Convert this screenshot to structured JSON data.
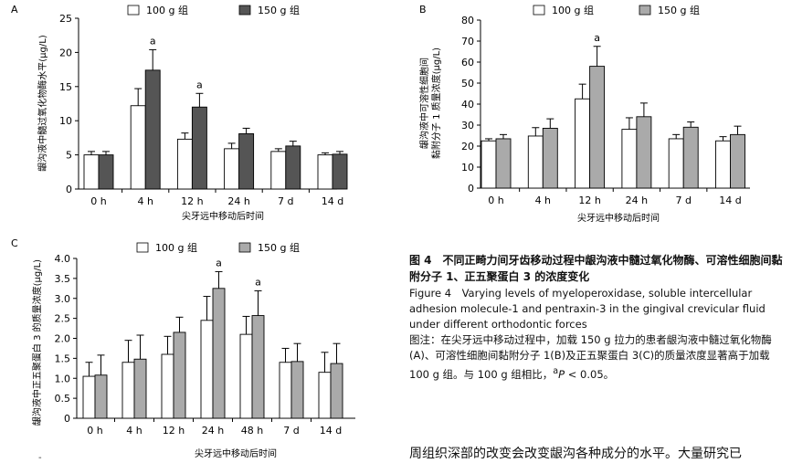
{
  "chart_data": [
    {
      "panel": "A",
      "type": "bar",
      "categories": [
        "0 h",
        "4 h",
        "12 h",
        "24 h",
        "7 d",
        "14 d"
      ],
      "series": [
        {
          "name": "100 g 组",
          "values": [
            5.0,
            12.2,
            7.3,
            5.9,
            5.5,
            5.0
          ],
          "errors": [
            0.5,
            2.5,
            0.9,
            0.8,
            0.4,
            0.3
          ],
          "color": "#ffffff"
        },
        {
          "name": "150 g 组",
          "values": [
            5.0,
            17.4,
            12.0,
            8.1,
            6.3,
            5.1
          ],
          "errors": [
            0.5,
            3.0,
            2.0,
            0.8,
            0.7,
            0.4
          ],
          "color": "#555555"
        }
      ],
      "annotations": [
        {
          "category": "4 h",
          "series": "150 g 组",
          "text": "a"
        },
        {
          "category": "12 h",
          "series": "150 g 组",
          "text": "a"
        }
      ],
      "xlabel": "尖牙远中移动后时间",
      "ylabel": "龈沟液中髓过氧化物酶水平(μg/L)",
      "ylim": [
        0,
        25
      ],
      "yticks": [
        0,
        5,
        10,
        15,
        20,
        25
      ],
      "legend": "top"
    },
    {
      "panel": "B",
      "type": "bar",
      "categories": [
        "0 h",
        "4 h",
        "12 h",
        "24 h",
        "7 d",
        "14 d"
      ],
      "series": [
        {
          "name": "100 g 组",
          "values": [
            22.5,
            24.8,
            42.5,
            28.0,
            23.5,
            22.5
          ],
          "errors": [
            1.0,
            4.0,
            7.0,
            5.5,
            2.0,
            2.0
          ],
          "color": "#ffffff"
        },
        {
          "name": "150 g 组",
          "values": [
            23.5,
            28.5,
            58.0,
            34.0,
            29.0,
            25.5
          ],
          "errors": [
            2.0,
            4.5,
            9.5,
            6.5,
            2.5,
            4.0
          ],
          "color": "#aaaaaa"
        }
      ],
      "annotations": [
        {
          "category": "12 h",
          "series": "150 g 组",
          "text": "a"
        }
      ],
      "xlabel": "尖牙远中移动后时间",
      "ylabel": [
        "龈沟液中可溶性细胞间",
        "黏附分子 1 质量浓度(μg/L)"
      ],
      "ylim": [
        0,
        80
      ],
      "yticks": [
        0,
        10,
        20,
        30,
        40,
        50,
        60,
        70,
        80
      ],
      "legend": "top"
    },
    {
      "panel": "C",
      "type": "bar",
      "categories": [
        "0 h",
        "4 h",
        "12 h",
        "24 h",
        "48 h",
        "7 d",
        "14 d"
      ],
      "series": [
        {
          "name": "100 g 组",
          "values": [
            1.05,
            1.4,
            1.6,
            2.45,
            2.1,
            1.4,
            1.15
          ],
          "errors": [
            0.35,
            0.55,
            0.45,
            0.6,
            0.45,
            0.35,
            0.5
          ],
          "color": "#ffffff"
        },
        {
          "name": "150 g 组",
          "values": [
            1.08,
            1.48,
            2.15,
            3.25,
            2.57,
            1.42,
            1.37
          ],
          "errors": [
            0.5,
            0.6,
            0.38,
            0.42,
            0.62,
            0.45,
            0.5
          ],
          "color": "#aaaaaa"
        }
      ],
      "annotations": [
        {
          "category": "24 h",
          "series": "150 g 组",
          "text": "a"
        },
        {
          "category": "48 h",
          "series": "150 g 组",
          "text": "a"
        }
      ],
      "xlabel": "尖牙远中移动后时间",
      "ylabel": "龈沟液中正五聚蛋白 3 的质量浓度(μg/L)",
      "ylim": [
        0,
        4.0
      ],
      "yticks": [
        "0",
        "0.5",
        "1.0",
        "1.5",
        "2.0",
        "2.5",
        "3.0",
        "3.5",
        "4.0"
      ],
      "legend": "top"
    }
  ],
  "caption": {
    "title": "图 4　不同正畸力间牙齿移动过程中龈沟液中髓过氧化物酶、可溶性细胞间黏附分子 1、正五聚蛋白 3 的浓度变化",
    "english": "Figure 4　Varying levels of myeloperoxidase, soluble intercellular adhesion molecule-1 and pentraxin-3 in the gingival crevicular fluid under different orthodontic forces",
    "note": "图注：在尖牙远中移动过程中，加载 150 g 拉力的患者龈沟液中髓过氧化物酶(A)、可溶性细胞间黏附分子 1(B)及正五聚蛋白 3(C)的质量浓度显著高于加载 100 g 组。与 100 g 组相比，",
    "note_sup": "a",
    "note_p": "P",
    "note_end": " < 0.05。"
  },
  "body_text": "周组织深部的改变会改变龈沟各种成分的水平。大量研究已",
  "stray_mark": "-"
}
